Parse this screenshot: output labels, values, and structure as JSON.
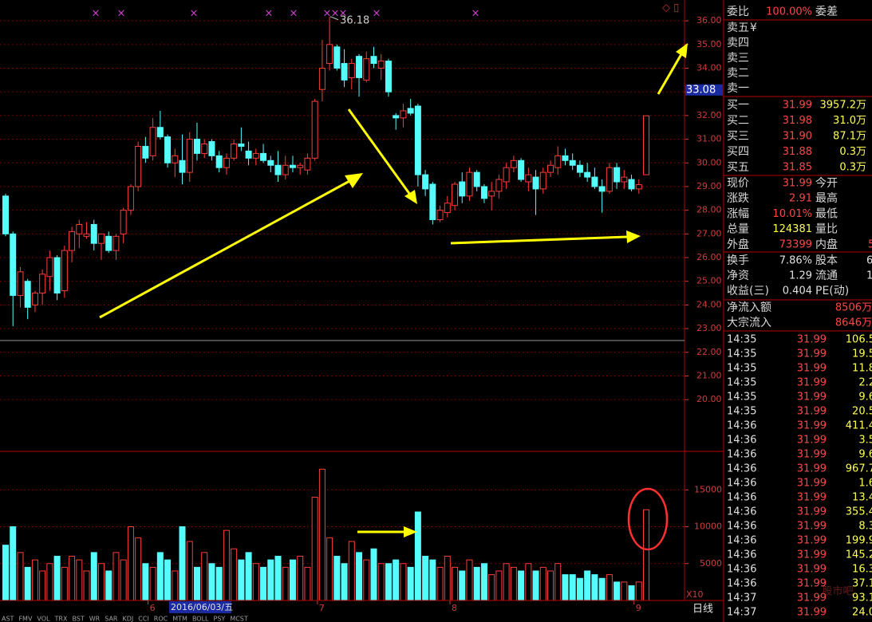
{
  "price_chart": {
    "type": "candlestick",
    "candles": [
      [
        28.6,
        28.7,
        26.9,
        27.0
      ],
      [
        27.0,
        27.1,
        23.1,
        24.4
      ],
      [
        24.4,
        25.6,
        23.9,
        25.4
      ],
      [
        25.0,
        25.1,
        23.4,
        23.9
      ],
      [
        24.0,
        24.6,
        23.7,
        24.5
      ],
      [
        24.5,
        25.5,
        24.0,
        25.3
      ],
      [
        25.2,
        26.3,
        24.6,
        26.0
      ],
      [
        26.0,
        26.1,
        24.2,
        24.5
      ],
      [
        24.6,
        26.5,
        24.3,
        26.3
      ],
      [
        26.3,
        27.3,
        25.8,
        27.1
      ],
      [
        27.0,
        27.6,
        26.4,
        27.4
      ],
      [
        26.9,
        27.5,
        26.8,
        27.0
      ],
      [
        27.4,
        27.6,
        26.3,
        26.6
      ],
      [
        26.6,
        27.0,
        25.9,
        27.0
      ],
      [
        26.9,
        27.1,
        26.2,
        26.3
      ],
      [
        26.3,
        27.0,
        25.9,
        26.9
      ],
      [
        27.0,
        28.1,
        26.6,
        28.0
      ],
      [
        28.0,
        29.1,
        27.8,
        29.0
      ],
      [
        29.0,
        30.9,
        28.8,
        30.7
      ],
      [
        30.7,
        31.1,
        30.0,
        30.2
      ],
      [
        30.3,
        31.9,
        30.1,
        31.5
      ],
      [
        31.5,
        32.2,
        31.0,
        31.1
      ],
      [
        31.1,
        31.2,
        29.8,
        30.0
      ],
      [
        30.0,
        30.6,
        29.4,
        30.3
      ],
      [
        30.1,
        31.2,
        29.1,
        29.6
      ],
      [
        29.6,
        31.3,
        29.2,
        31.0
      ],
      [
        31.0,
        31.7,
        30.1,
        30.4
      ],
      [
        30.4,
        31.0,
        30.2,
        30.8
      ],
      [
        30.9,
        31.0,
        30.1,
        30.3
      ],
      [
        30.3,
        30.5,
        29.6,
        29.8
      ],
      [
        29.8,
        30.4,
        29.5,
        30.2
      ],
      [
        30.2,
        31.0,
        30.1,
        30.8
      ],
      [
        30.8,
        31.5,
        30.5,
        30.7
      ],
      [
        30.5,
        30.9,
        29.9,
        30.2
      ],
      [
        30.2,
        30.6,
        29.9,
        30.4
      ],
      [
        30.4,
        30.8,
        30.0,
        30.1
      ],
      [
        30.1,
        30.3,
        29.6,
        29.9
      ],
      [
        29.9,
        30.5,
        29.2,
        29.5
      ],
      [
        29.5,
        30.3,
        29.3,
        29.9
      ],
      [
        29.9,
        30.3,
        29.6,
        29.8
      ],
      [
        29.8,
        30.0,
        29.5,
        29.9
      ],
      [
        29.7,
        30.4,
        29.5,
        30.2
      ],
      [
        30.2,
        32.7,
        30.1,
        32.6
      ],
      [
        33.1,
        35.2,
        32.6,
        34.0
      ],
      [
        34.2,
        36.18,
        33.9,
        35.0
      ],
      [
        34.9,
        35.0,
        33.9,
        34.0
      ],
      [
        34.2,
        34.8,
        33.2,
        33.5
      ],
      [
        33.6,
        34.4,
        33.1,
        34.2
      ],
      [
        34.5,
        34.6,
        32.8,
        33.6
      ],
      [
        33.5,
        34.7,
        33.4,
        34.4
      ],
      [
        34.5,
        34.9,
        34.0,
        34.2
      ],
      [
        34.0,
        34.6,
        33.5,
        34.3
      ],
      [
        34.3,
        34.4,
        32.8,
        33.0
      ],
      [
        32.0,
        32.1,
        31.4,
        31.9
      ],
      [
        31.9,
        32.5,
        31.5,
        32.2
      ],
      [
        32.3,
        32.7,
        32.0,
        32.1
      ],
      [
        32.4,
        32.5,
        29.0,
        29.5
      ],
      [
        29.5,
        29.7,
        28.6,
        28.9
      ],
      [
        29.1,
        29.2,
        27.4,
        27.6
      ],
      [
        27.6,
        28.2,
        27.5,
        28.0
      ],
      [
        27.9,
        28.6,
        27.7,
        28.3
      ],
      [
        28.2,
        29.2,
        28.0,
        29.1
      ],
      [
        29.2,
        29.6,
        28.3,
        28.6
      ],
      [
        28.6,
        29.8,
        28.4,
        29.6
      ],
      [
        29.6,
        29.7,
        28.8,
        29.0
      ],
      [
        29.0,
        29.1,
        28.3,
        28.5
      ],
      [
        28.6,
        29.2,
        28.0,
        28.8
      ],
      [
        28.8,
        29.5,
        28.5,
        29.3
      ],
      [
        29.2,
        30.0,
        28.9,
        29.8
      ],
      [
        29.8,
        30.3,
        29.6,
        30.1
      ],
      [
        30.1,
        30.2,
        29.2,
        29.3
      ],
      [
        29.2,
        29.8,
        28.8,
        29.5
      ],
      [
        29.4,
        29.7,
        27.8,
        28.9
      ],
      [
        28.9,
        29.8,
        28.7,
        29.6
      ],
      [
        29.6,
        30.1,
        29.4,
        29.9
      ],
      [
        29.8,
        30.7,
        29.5,
        30.3
      ],
      [
        30.3,
        30.6,
        29.9,
        30.1
      ],
      [
        30.1,
        30.4,
        29.7,
        29.9
      ],
      [
        29.9,
        30.1,
        29.4,
        29.6
      ],
      [
        29.6,
        30.0,
        29.2,
        29.4
      ],
      [
        29.4,
        29.8,
        28.9,
        29.0
      ],
      [
        29.0,
        29.3,
        27.9,
        28.8
      ],
      [
        28.8,
        30.0,
        28.7,
        29.8
      ],
      [
        29.8,
        30.0,
        28.9,
        29.2
      ],
      [
        29.2,
        29.7,
        28.9,
        29.4
      ],
      [
        29.3,
        29.5,
        28.8,
        28.9
      ],
      [
        28.9,
        29.3,
        28.7,
        29.08
      ],
      [
        29.5,
        31.99,
        29.5,
        31.99
      ]
    ],
    "volumes": [
      7500,
      10000,
      6500,
      4500,
      5500,
      4000,
      5000,
      6000,
      4500,
      6000,
      5500,
      4000,
      6500,
      5000,
      4000,
      6500,
      5500,
      10000,
      8500,
      5000,
      4500,
      6500,
      5500,
      4000,
      10000,
      8000,
      4500,
      6500,
      5000,
      4500,
      9500,
      7000,
      5500,
      6500,
      5000,
      4500,
      5500,
      6000,
      4500,
      5500,
      6000,
      4500,
      14000,
      17800,
      8500,
      6000,
      5000,
      8000,
      6500,
      5500,
      7000,
      5000,
      5000,
      5500,
      5000,
      4500,
      12000,
      6000,
      5500,
      4500,
      6000,
      4500,
      4000,
      5500,
      4500,
      5000,
      3500,
      4000,
      5000,
      4500,
      4000,
      5000,
      4000,
      4500,
      4000,
      5000,
      3500,
      3500,
      3000,
      4000,
      3500,
      3000,
      3500,
      2500,
      2500,
      2000,
      2500,
      12300
    ],
    "categories": [
      null,
      null,
      null,
      null,
      null,
      null,
      null,
      null,
      null,
      null,
      null,
      null,
      null,
      null,
      null,
      null,
      null,
      null,
      null,
      null,
      "6",
      null,
      null,
      null,
      null,
      null,
      null,
      null,
      null,
      null,
      null,
      null,
      null,
      null,
      null,
      null,
      null,
      null,
      null,
      null,
      null,
      null,
      null,
      "7",
      null,
      null,
      null,
      null,
      null,
      null,
      null,
      null,
      null,
      null,
      null,
      null,
      null,
      null,
      null,
      null,
      null,
      "8",
      null,
      null,
      null,
      null,
      null,
      null,
      null,
      null,
      null,
      null,
      null,
      null,
      null,
      null,
      null,
      null,
      null,
      null,
      null,
      null,
      null,
      null,
      null,
      null,
      "9",
      null
    ],
    "ylim": [
      17.85,
      36.88
    ],
    "yticks": [
      {
        "value": 36,
        "label": "36.00"
      },
      {
        "value": 35,
        "label": "35.00"
      },
      {
        "value": 34,
        "label": "34.00"
      },
      {
        "value": 33,
        "label": "33.00"
      },
      {
        "value": 32,
        "label": "32.00"
      },
      {
        "value": 31,
        "label": "31.00"
      },
      {
        "value": 30,
        "label": "30.00"
      },
      {
        "value": 29,
        "label": "29.00"
      },
      {
        "value": 28,
        "label": "28.00"
      },
      {
        "value": 27,
        "label": "27.00"
      },
      {
        "value": 26,
        "label": "26.00"
      },
      {
        "value": 25,
        "label": "25.00"
      },
      {
        "value": 24,
        "label": "24.00"
      },
      {
        "value": 23,
        "label": "23.00"
      },
      {
        "value": 22,
        "label": "22.00"
      },
      {
        "value": 21,
        "label": "21.00"
      },
      {
        "value": 20,
        "label": "20.00"
      }
    ],
    "high_annotation": 36.18,
    "cursor_price": 33.08,
    "cursor_date": "2016/06/03/五",
    "vlim": [
      0,
      20000
    ],
    "vticks": [
      15000,
      10000,
      5000
    ],
    "volume_unit": "X10",
    "period": "日线",
    "up_color": "#ff3c3c",
    "down_color": "#54fcfc",
    "indicator_tabs": [
      "AST",
      "FMV",
      "VOL",
      "TRX",
      "BST",
      "WR",
      "SAR",
      "KDJ",
      "CCI",
      "ROC",
      "MTM",
      "BOLL",
      "PSY",
      "MCST"
    ]
  },
  "quote_panel": {
    "header": [
      "委比",
      "100.00%",
      "委差"
    ],
    "asks": [
      "卖五",
      "卖四",
      "卖三",
      "卖二",
      "卖一"
    ],
    "currency_mark": "¥",
    "bids": [
      [
        "买一",
        "31.99",
        "3957.2万"
      ],
      [
        "买二",
        "31.98",
        "31.0万"
      ],
      [
        "买三",
        "31.90",
        "87.1万"
      ],
      [
        "买四",
        "31.88",
        "0.3万"
      ],
      [
        "买五",
        "31.85",
        "0.3万"
      ]
    ],
    "quote": [
      [
        "现价",
        "31.99",
        "今开"
      ],
      [
        "涨跌",
        "2.91",
        "最高"
      ],
      [
        "涨幅",
        "10.01%",
        "最低"
      ],
      [
        "总量",
        "124381",
        "量比"
      ],
      [
        "外盘",
        "73399",
        "内盘",
        "5"
      ]
    ],
    "fundamentals": [
      [
        "换手",
        "7.86%",
        "股本",
        "6"
      ],
      [
        "净资",
        "1.29",
        "流通",
        "1"
      ],
      [
        "收益(三)",
        "0.404",
        "PE(动)"
      ]
    ],
    "flows": [
      [
        "净流入额",
        "8506万"
      ],
      [
        "大宗流入",
        "8646万"
      ]
    ],
    "trades": [
      {
        "time": "14:35",
        "price": "31.99",
        "volume": "106.5",
        "color": "#ffff54"
      },
      {
        "time": "14:35",
        "price": "31.99",
        "volume": "19.5",
        "color": "#ffff54"
      },
      {
        "time": "14:35",
        "price": "31.99",
        "volume": "11.8",
        "color": "#ffff54"
      },
      {
        "time": "14:35",
        "price": "31.99",
        "volume": "2.2",
        "color": "#ffff54"
      },
      {
        "time": "14:35",
        "price": "31.99",
        "volume": "9.6",
        "color": "#ffff54"
      },
      {
        "time": "14:35",
        "price": "31.99",
        "volume": "20.5",
        "color": "#ffff54"
      },
      {
        "time": "14:36",
        "price": "31.99",
        "volume": "411.4",
        "color": "#ff54ff"
      },
      {
        "time": "14:36",
        "price": "31.99",
        "volume": "3.5",
        "color": "#ffff54"
      },
      {
        "time": "14:36",
        "price": "31.99",
        "volume": "9.6",
        "color": "#ffff54"
      },
      {
        "time": "14:36",
        "price": "31.99",
        "volume": "967.7",
        "color": "#ff54ff"
      },
      {
        "time": "14:36",
        "price": "31.99",
        "volume": "1.6",
        "color": "#ffff54"
      },
      {
        "time": "14:36",
        "price": "31.99",
        "volume": "13.4",
        "color": "#ffff54"
      },
      {
        "time": "14:36",
        "price": "31.99",
        "volume": "355.4",
        "color": "#ff54ff"
      },
      {
        "time": "14:36",
        "price": "31.99",
        "volume": "8.3",
        "color": "#ffff54"
      },
      {
        "time": "14:36",
        "price": "31.99",
        "volume": "199.9",
        "color": "#ff54ff"
      },
      {
        "time": "14:36",
        "price": "31.99",
        "volume": "145.2",
        "color": "#ffff54"
      },
      {
        "time": "14:36",
        "price": "31.99",
        "volume": "16.3",
        "color": "#ffff54"
      },
      {
        "time": "14:36",
        "price": "31.99",
        "volume": "37.1",
        "color": "#ffff54"
      },
      {
        "time": "14:37",
        "price": "31.99",
        "volume": "93.1",
        "color": "#ffff54"
      },
      {
        "time": "14:37",
        "price": "31.99",
        "volume": "24.0",
        "color": "#ffff54"
      }
    ]
  },
  "watermark": "股市吧"
}
